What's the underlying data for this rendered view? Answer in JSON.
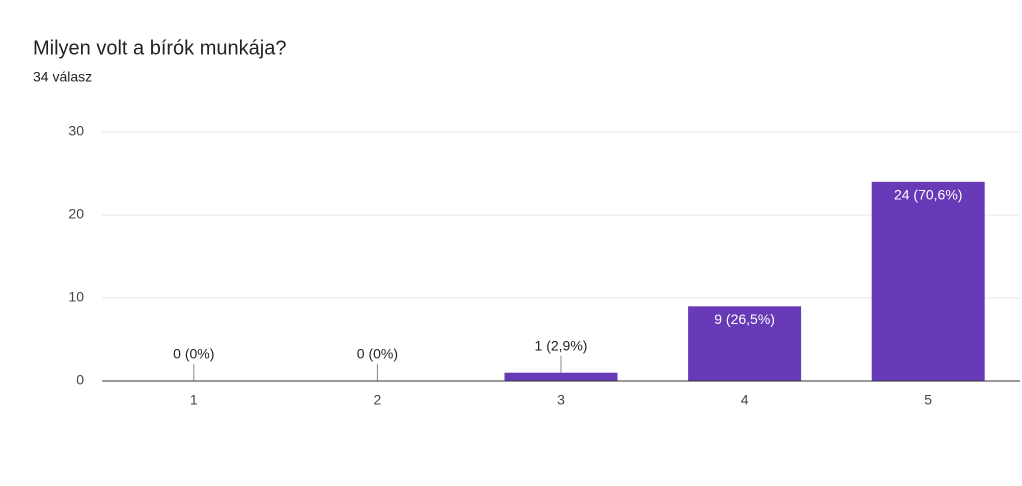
{
  "chart_data": {
    "type": "bar",
    "title": "Milyen volt a bírók munkája?",
    "subtitle": "34 válasz",
    "categories": [
      "1",
      "2",
      "3",
      "4",
      "5"
    ],
    "values": [
      0,
      0,
      1,
      9,
      24
    ],
    "value_labels": [
      "0 (0%)",
      "0 (0%)",
      "1 (2,9%)",
      "9 (26,5%)",
      "24 (70,6%)"
    ],
    "color": "#673ab7",
    "ylim": [
      0,
      30
    ],
    "yticks": [
      0,
      10,
      20,
      30
    ],
    "grid": true
  }
}
